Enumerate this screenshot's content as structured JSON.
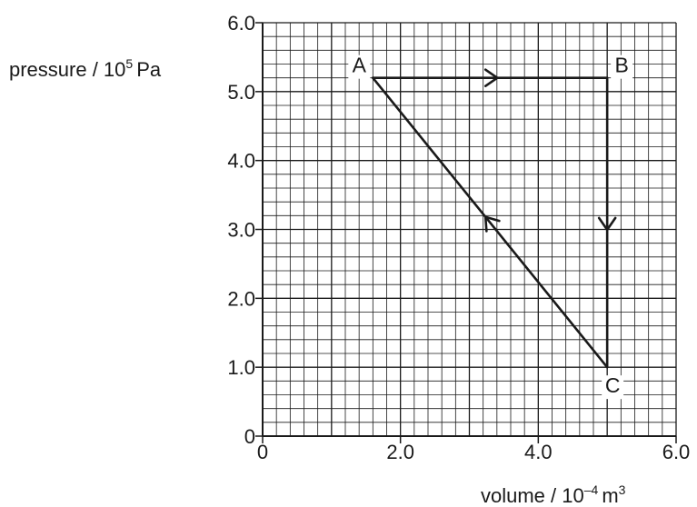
{
  "chart_data": {
    "type": "line",
    "xlabel": {
      "text": "volume / 10",
      "exponent": "–4",
      "unit": "m",
      "unit_exponent": "3"
    },
    "ylabel": {
      "text": "pressure / 10",
      "exponent": "5",
      "unit": "Pa"
    },
    "xlim": [
      0,
      6.0
    ],
    "ylim": [
      0,
      6.0
    ],
    "x_ticks": [
      {
        "value": 0,
        "label": "0"
      },
      {
        "value": 2.0,
        "label": "2.0"
      },
      {
        "value": 4.0,
        "label": "4.0"
      },
      {
        "value": 6.0,
        "label": "6.0"
      }
    ],
    "y_ticks": [
      {
        "value": 0,
        "label": "0"
      },
      {
        "value": 1.0,
        "label": "1.0"
      },
      {
        "value": 2.0,
        "label": "2.0"
      },
      {
        "value": 3.0,
        "label": "3.0"
      },
      {
        "value": 4.0,
        "label": "4.0"
      },
      {
        "value": 5.0,
        "label": "5.0"
      },
      {
        "value": 6.0,
        "label": "6.0"
      }
    ],
    "grid": {
      "on": true,
      "minor_step": 0.2,
      "major_step": 1.0
    },
    "points": [
      {
        "label": "A",
        "x": 1.6,
        "y": 5.2
      },
      {
        "label": "B",
        "x": 5.0,
        "y": 5.2
      },
      {
        "label": "C",
        "x": 5.0,
        "y": 1.0
      }
    ],
    "cycle": [
      "A",
      "B",
      "C",
      "A"
    ],
    "colors": {
      "line": "#1a1a1a",
      "grid": "#1a1a1a"
    }
  }
}
